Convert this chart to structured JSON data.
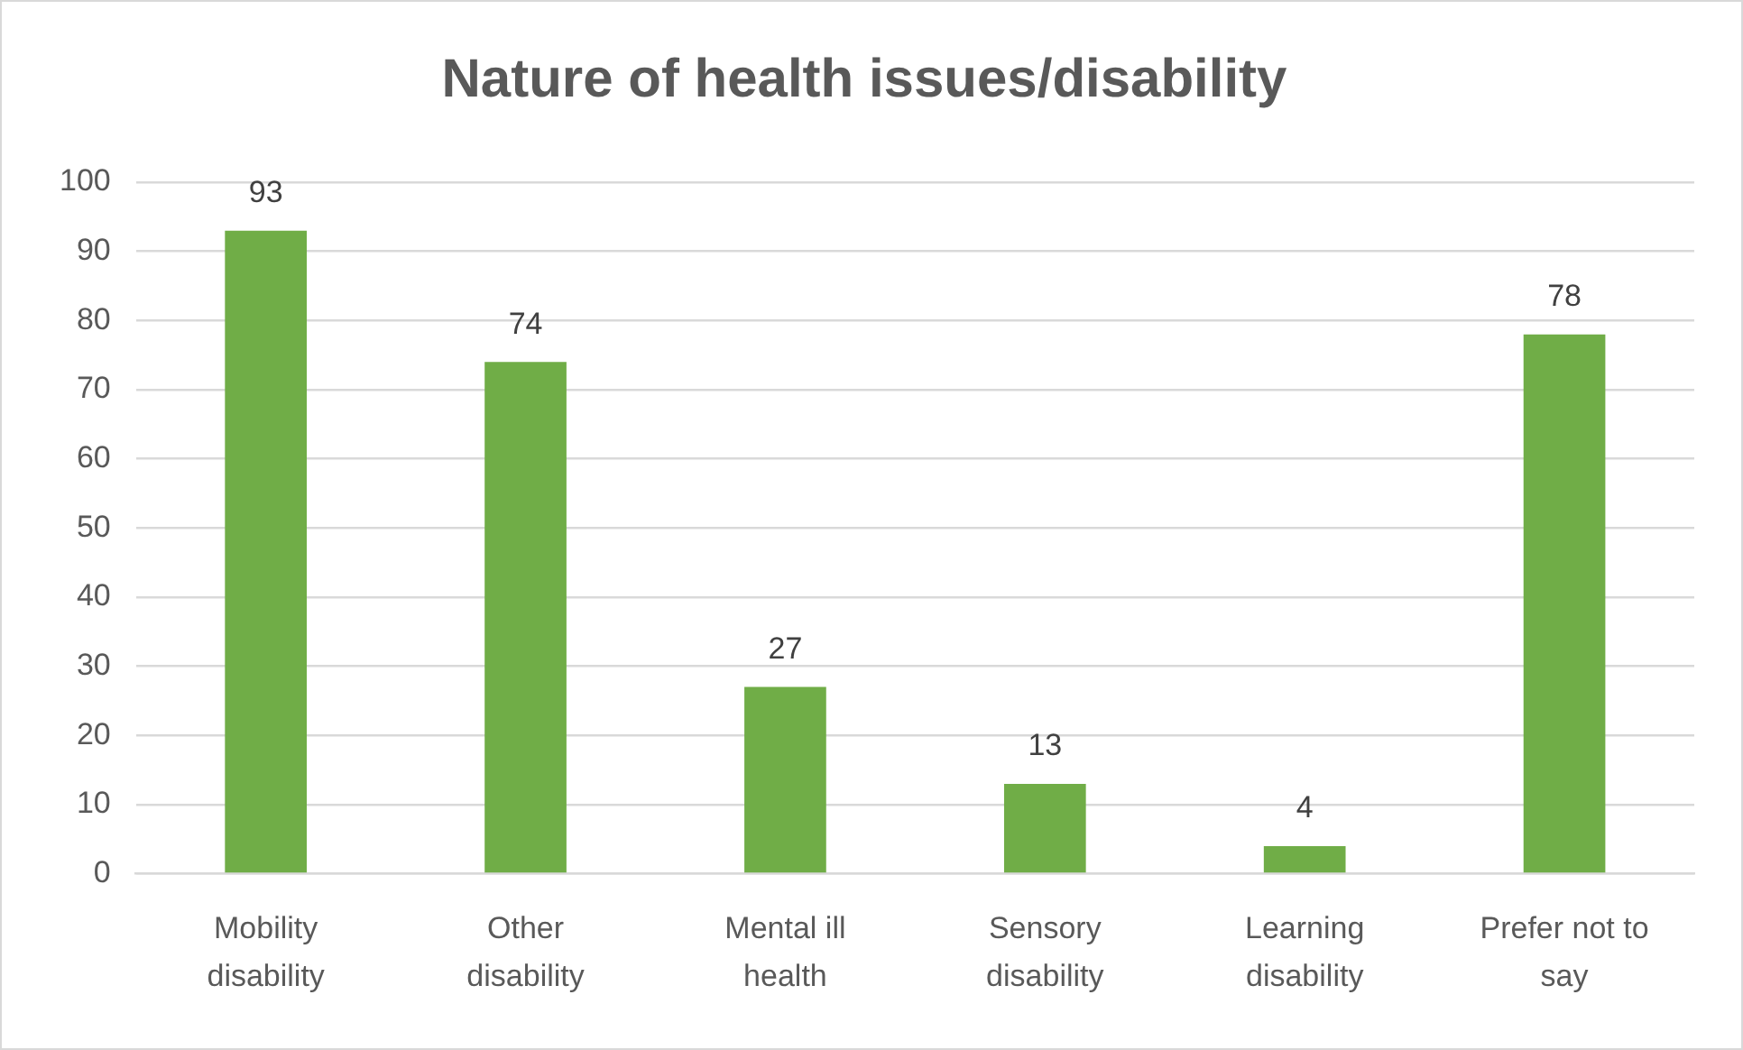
{
  "chart_data": {
    "type": "bar",
    "title": "Nature of health issues/disability",
    "categories": [
      "Mobility disability",
      "Other disability",
      "Mental ill health",
      "Sensory disability",
      "Learning disability",
      "Prefer not to say"
    ],
    "values": [
      93,
      74,
      27,
      13,
      4,
      78
    ],
    "color": "#70ad47",
    "ylim": [
      0,
      100
    ],
    "yticks": [
      0,
      10,
      20,
      30,
      40,
      50,
      60,
      70,
      80,
      90,
      100
    ],
    "grid": "y",
    "data_labels": true
  }
}
